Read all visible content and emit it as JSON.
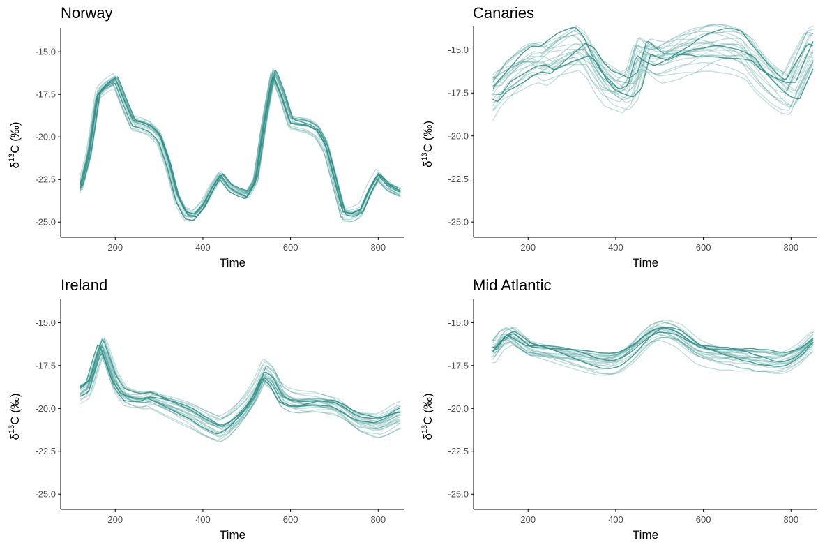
{
  "chart_data": [
    {
      "type": "line",
      "title": "Norway",
      "xlabel": "Time",
      "ylabel": "δ13C (‰)",
      "xlim": [
        85,
        860
      ],
      "ylim": [
        -25.4,
        -13.6
      ],
      "xticks": [
        200,
        400,
        600,
        800
      ],
      "xtick_labels": [
        "200",
        "400",
        "600",
        "800"
      ],
      "yticks": [
        -15,
        -17.5,
        -20,
        -22.5,
        -25
      ],
      "ytick_labels": [
        "-15.0",
        "-17.5",
        "-20.0",
        "-22.5",
        "-25.0"
      ],
      "color": "#2f8f88",
      "grid": false,
      "base": {
        "x": [
          120,
          140,
          160,
          180,
          200,
          220,
          240,
          260,
          280,
          300,
          320,
          340,
          360,
          380,
          400,
          420,
          440,
          460,
          480,
          500,
          520,
          540,
          560,
          580,
          600,
          620,
          640,
          660,
          680,
          700,
          720,
          740,
          760,
          780,
          800,
          820,
          840,
          850
        ],
        "y": [
          -23.0,
          -21.0,
          -17.5,
          -17.0,
          -16.7,
          -18.0,
          -19.2,
          -19.3,
          -19.5,
          -20.0,
          -21.5,
          -23.5,
          -24.5,
          -24.6,
          -24.0,
          -23.0,
          -22.2,
          -22.9,
          -23.2,
          -23.4,
          -22.5,
          -19.0,
          -16.2,
          -17.5,
          -19.1,
          -19.2,
          -19.3,
          -19.6,
          -20.5,
          -22.5,
          -24.5,
          -24.6,
          -24.4,
          -23.2,
          -22.3,
          -22.9,
          -23.2,
          -23.3
        ]
      },
      "n_series": 18,
      "variation": {
        "amplitude": 0.5,
        "lag": 6
      }
    },
    {
      "type": "line",
      "title": "Canaries",
      "xlabel": "Time",
      "ylabel": "δ13C (‰)",
      "xlim": [
        85,
        860
      ],
      "ylim": [
        -25.4,
        -13.6
      ],
      "xticks": [
        200,
        400,
        600,
        800
      ],
      "xtick_labels": [
        "200",
        "400",
        "600",
        "800"
      ],
      "yticks": [
        -15,
        -17.5,
        -20,
        -22.5,
        -25
      ],
      "ytick_labels": [
        "-15.0",
        "-17.5",
        "-20.0",
        "-22.5",
        "-25.0"
      ],
      "color": "#2f8f88",
      "grid": false,
      "base": {
        "x": [
          120,
          140,
          160,
          180,
          200,
          220,
          240,
          260,
          280,
          300,
          320,
          340,
          360,
          380,
          400,
          420,
          440,
          460,
          480,
          500,
          520,
          540,
          560,
          580,
          600,
          620,
          640,
          660,
          680,
          700,
          720,
          740,
          760,
          780,
          800,
          820,
          840,
          850
        ],
        "y": [
          -18.0,
          -17.2,
          -16.8,
          -16.4,
          -16.0,
          -15.8,
          -16.0,
          -15.7,
          -15.4,
          -15.2,
          -15.0,
          -15.5,
          -16.5,
          -17.2,
          -17.5,
          -17.8,
          -17.4,
          -15.5,
          -15.8,
          -16.0,
          -15.8,
          -15.6,
          -15.4,
          -15.3,
          -15.1,
          -15.0,
          -15.0,
          -15.0,
          -15.1,
          -15.3,
          -16.0,
          -16.5,
          -17.0,
          -17.4,
          -17.6,
          -16.5,
          -15.5,
          -15.0
        ]
      },
      "n_series": 22,
      "variation": {
        "amplitude": 1.7,
        "lag": 20
      }
    },
    {
      "type": "line",
      "title": "Ireland",
      "xlabel": "Time",
      "ylabel": "δ13C (‰)",
      "xlim": [
        85,
        860
      ],
      "ylim": [
        -25.4,
        -13.6
      ],
      "xticks": [
        200,
        400,
        600,
        800
      ],
      "xtick_labels": [
        "200",
        "400",
        "600",
        "800"
      ],
      "yticks": [
        -15,
        -17.5,
        -20,
        -22.5,
        -25
      ],
      "ytick_labels": [
        "-15.0",
        "-17.5",
        "-20.0",
        "-22.5",
        "-25.0"
      ],
      "color": "#2f8f88",
      "grid": false,
      "base": {
        "x": [
          120,
          140,
          160,
          170,
          180,
          200,
          220,
          240,
          260,
          280,
          300,
          320,
          340,
          360,
          380,
          400,
          420,
          440,
          460,
          480,
          500,
          520,
          540,
          560,
          580,
          600,
          620,
          640,
          660,
          680,
          700,
          720,
          740,
          760,
          780,
          800,
          820,
          840,
          850
        ],
        "y": [
          -19.0,
          -18.7,
          -17.0,
          -16.3,
          -17.0,
          -18.5,
          -19.3,
          -19.5,
          -19.6,
          -19.5,
          -19.7,
          -19.9,
          -20.1,
          -20.3,
          -20.5,
          -20.8,
          -21.0,
          -21.2,
          -20.9,
          -20.4,
          -19.8,
          -19.0,
          -17.8,
          -18.2,
          -19.2,
          -19.5,
          -19.6,
          -19.6,
          -19.6,
          -19.7,
          -19.8,
          -20.1,
          -20.5,
          -20.8,
          -20.9,
          -21.0,
          -20.8,
          -20.5,
          -20.4
        ]
      },
      "n_series": 22,
      "variation": {
        "amplitude": 0.9,
        "lag": 8
      }
    },
    {
      "type": "line",
      "title": "Mid Atlantic",
      "xlabel": "Time",
      "ylabel": "δ13C (‰)",
      "xlim": [
        85,
        860
      ],
      "ylim": [
        -25.4,
        -13.6
      ],
      "xticks": [
        200,
        400,
        600,
        800
      ],
      "xtick_labels": [
        "200",
        "400",
        "600",
        "800"
      ],
      "yticks": [
        -15,
        -17.5,
        -20,
        -22.5,
        -25
      ],
      "ytick_labels": [
        "-15.0",
        "-17.5",
        "-20.0",
        "-22.5",
        "-25.0"
      ],
      "color": "#2f8f88",
      "grid": false,
      "base": {
        "x": [
          120,
          140,
          160,
          180,
          200,
          220,
          240,
          260,
          280,
          300,
          320,
          340,
          360,
          380,
          400,
          420,
          440,
          460,
          480,
          500,
          520,
          540,
          560,
          580,
          600,
          620,
          640,
          660,
          680,
          700,
          720,
          740,
          760,
          780,
          800,
          820,
          840,
          850
        ],
        "y": [
          -16.7,
          -16.0,
          -15.8,
          -16.2,
          -16.6,
          -16.7,
          -16.8,
          -16.9,
          -17.0,
          -17.1,
          -17.2,
          -17.3,
          -17.4,
          -17.4,
          -17.3,
          -17.0,
          -16.6,
          -16.1,
          -15.7,
          -15.5,
          -15.6,
          -15.8,
          -16.2,
          -16.6,
          -16.8,
          -16.9,
          -17.0,
          -17.0,
          -17.1,
          -17.1,
          -17.2,
          -17.2,
          -17.3,
          -17.3,
          -17.1,
          -16.8,
          -16.3,
          -16.1
        ]
      },
      "n_series": 22,
      "variation": {
        "amplitude": 0.8,
        "lag": 12
      }
    }
  ]
}
